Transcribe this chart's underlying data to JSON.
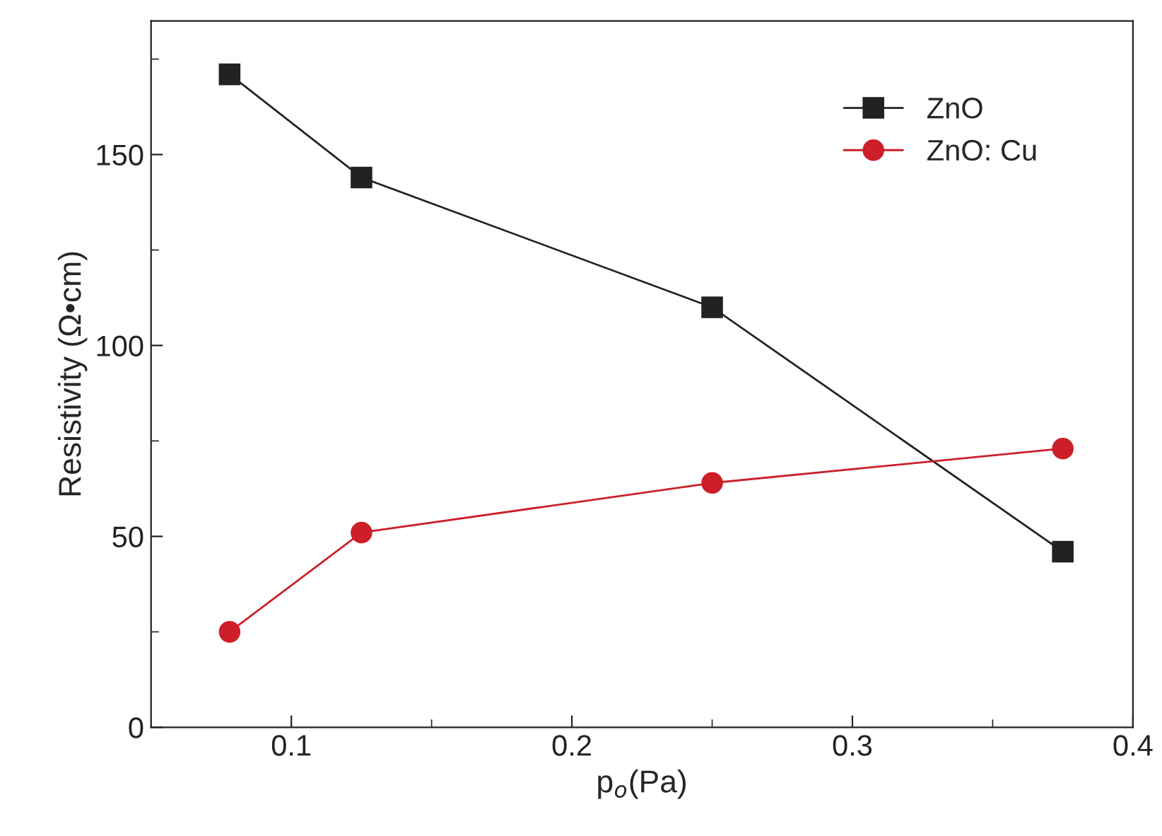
{
  "chart_data": {
    "type": "line",
    "xlabel": "p$_{o}$(Pa)",
    "ylabel": "Resistivity (Ω•cm)",
    "x": [
      0.078,
      0.125,
      0.25,
      0.375
    ],
    "series": [
      {
        "name": "ZnO",
        "color": "#222222",
        "values": [
          171,
          144,
          110,
          46
        ],
        "marker": "square"
      },
      {
        "name": "ZnO: Cu",
        "color": "#cc1f2a",
        "values": [
          25,
          51,
          64,
          73
        ],
        "marker": "circle"
      }
    ],
    "xlim": [
      0.05,
      0.4
    ],
    "xticks": [
      0.1,
      0.2,
      0.3,
      0.4
    ],
    "ylim": [
      0,
      185
    ],
    "yticks": [
      0,
      50,
      100,
      150
    ],
    "grid": false,
    "legend": "top right",
    "line_style": "solid"
  }
}
